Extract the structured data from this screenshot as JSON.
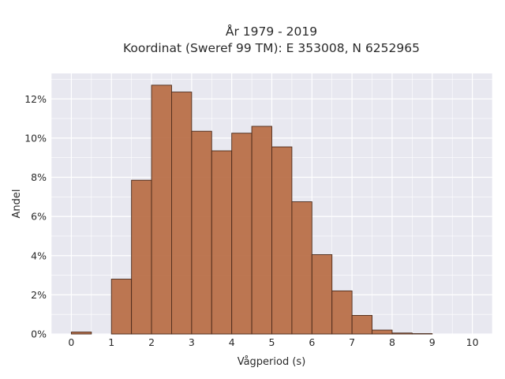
{
  "chart_data": {
    "type": "bar",
    "title_lines": [
      "År 1979 - 2019",
      "Koordinat (Sweref 99 TM): E 353008, N 6252965"
    ],
    "xlabel": "Vågperiod (s)",
    "ylabel": "Andel",
    "bin_width": 0.5,
    "bins": [
      {
        "start": 0.0,
        "value": 0.1
      },
      {
        "start": 0.5,
        "value": 0.0
      },
      {
        "start": 1.0,
        "value": 2.8
      },
      {
        "start": 1.5,
        "value": 7.85
      },
      {
        "start": 2.0,
        "value": 12.7
      },
      {
        "start": 2.5,
        "value": 12.35
      },
      {
        "start": 3.0,
        "value": 10.35
      },
      {
        "start": 3.5,
        "value": 9.35
      },
      {
        "start": 4.0,
        "value": 10.25
      },
      {
        "start": 4.5,
        "value": 10.6
      },
      {
        "start": 5.0,
        "value": 9.55
      },
      {
        "start": 5.5,
        "value": 6.75
      },
      {
        "start": 6.0,
        "value": 4.05
      },
      {
        "start": 6.5,
        "value": 2.2
      },
      {
        "start": 7.0,
        "value": 0.95
      },
      {
        "start": 7.5,
        "value": 0.2
      },
      {
        "start": 8.0,
        "value": 0.05
      },
      {
        "start": 8.5,
        "value": 0.02
      },
      {
        "start": 9.0,
        "value": 0.0
      },
      {
        "start": 9.5,
        "value": 0.0
      }
    ],
    "xlim": [
      -0.5,
      10.5
    ],
    "ylim": [
      0,
      13.3
    ],
    "x_ticks": [
      0,
      1,
      2,
      3,
      4,
      5,
      6,
      7,
      8,
      9,
      10
    ],
    "x_tick_labels": [
      "0",
      "1",
      "2",
      "3",
      "4",
      "5",
      "6",
      "7",
      "8",
      "9",
      "10"
    ],
    "y_ticks": [
      0,
      2,
      4,
      6,
      8,
      10,
      12
    ],
    "y_tick_labels": [
      "0%",
      "2%",
      "4%",
      "6%",
      "8%",
      "10%",
      "12%"
    ],
    "grid": true,
    "colors": {
      "bar_fill": "#b86d45",
      "bar_stroke": "#4a2a1a",
      "plot_background": "#e8e8f0",
      "grid": "#ffffff"
    }
  }
}
